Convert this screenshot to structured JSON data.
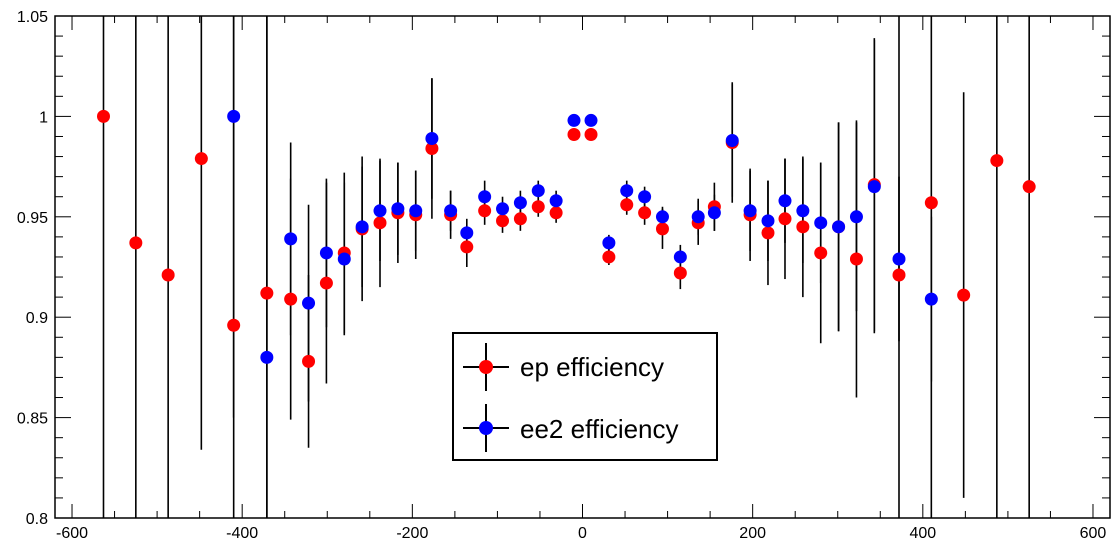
{
  "chart_data": {
    "type": "scatter",
    "title": "",
    "xlabel": "",
    "ylabel": "",
    "xlim": [
      -620,
      620
    ],
    "ylim": [
      0.8,
      1.05
    ],
    "grid": false,
    "legend_position": "center",
    "x_ticks": [
      -600,
      -400,
      -200,
      0,
      200,
      400,
      600
    ],
    "y_ticks": [
      0.8,
      0.85,
      0.9,
      0.95,
      1,
      1.05
    ],
    "x_tick_labels": [
      "-600",
      "-400",
      "-200",
      "0",
      "200",
      "400",
      "600"
    ],
    "y_tick_labels": [
      "0.8",
      "0.85",
      "0.9",
      "0.95",
      "1",
      "1.05"
    ],
    "series": [
      {
        "name": "ep efficiency",
        "color": "#ff0000",
        "points": [
          {
            "x": -563,
            "y": 1.0,
            "err": 0.3
          },
          {
            "x": -525,
            "y": 0.937,
            "err": 0.3
          },
          {
            "x": -487,
            "y": 0.921,
            "err": 0.3
          },
          {
            "x": -448,
            "y": 0.979,
            "err": 0.145
          },
          {
            "x": -410,
            "y": 0.896,
            "err": 0.3
          },
          {
            "x": -371,
            "y": 0.912,
            "err": 0.3
          },
          {
            "x": -343,
            "y": 0.909,
            "err": 0.06
          },
          {
            "x": -322,
            "y": 0.878,
            "err": 0.043
          },
          {
            "x": -301,
            "y": 0.917,
            "err": 0.05
          },
          {
            "x": -280,
            "y": 0.932,
            "err": 0.04
          },
          {
            "x": -259,
            "y": 0.944,
            "err": 0.036
          },
          {
            "x": -238,
            "y": 0.947,
            "err": 0.032
          },
          {
            "x": -217,
            "y": 0.952,
            "err": 0.025
          },
          {
            "x": -196,
            "y": 0.951,
            "err": 0.022
          },
          {
            "x": -177,
            "y": 0.984,
            "err": 0.035
          },
          {
            "x": -155,
            "y": 0.951,
            "err": 0.012
          },
          {
            "x": -136,
            "y": 0.935,
            "err": 0.01
          },
          {
            "x": -115,
            "y": 0.953,
            "err": 0.007
          },
          {
            "x": -94,
            "y": 0.948,
            "err": 0.006
          },
          {
            "x": -73,
            "y": 0.949,
            "err": 0.006
          },
          {
            "x": -52,
            "y": 0.955,
            "err": 0.005
          },
          {
            "x": -31,
            "y": 0.952,
            "err": 0.005
          },
          {
            "x": -10,
            "y": 0.991,
            "err": 0.003
          },
          {
            "x": 10,
            "y": 0.991,
            "err": 0.003
          },
          {
            "x": 31,
            "y": 0.93,
            "err": 0.004
          },
          {
            "x": 52,
            "y": 0.956,
            "err": 0.005
          },
          {
            "x": 73,
            "y": 0.952,
            "err": 0.006
          },
          {
            "x": 94,
            "y": 0.944,
            "err": 0.01
          },
          {
            "x": 115,
            "y": 0.922,
            "err": 0.008
          },
          {
            "x": 136,
            "y": 0.947,
            "err": 0.011
          },
          {
            "x": 155,
            "y": 0.955,
            "err": 0.012
          },
          {
            "x": 176,
            "y": 0.987,
            "err": 0.03
          },
          {
            "x": 197,
            "y": 0.951,
            "err": 0.023
          },
          {
            "x": 218,
            "y": 0.942,
            "err": 0.026
          },
          {
            "x": 238,
            "y": 0.949,
            "err": 0.03
          },
          {
            "x": 259,
            "y": 0.945,
            "err": 0.035
          },
          {
            "x": 280,
            "y": 0.932,
            "err": 0.045
          },
          {
            "x": 301,
            "y": 0.945,
            "err": 0.052
          },
          {
            "x": 322,
            "y": 0.929,
            "err": 0.069
          },
          {
            "x": 343,
            "y": 0.966,
            "err": 0.073
          },
          {
            "x": 372,
            "y": 0.921,
            "err": 0.3
          },
          {
            "x": 410,
            "y": 0.957,
            "err": 0.3
          },
          {
            "x": 448,
            "y": 0.911,
            "err": 0.101
          },
          {
            "x": 487,
            "y": 0.978,
            "err": 0.3
          },
          {
            "x": 525,
            "y": 0.965,
            "err": 0.3
          }
        ]
      },
      {
        "name": "ee2 efficiency",
        "color": "#0000ff",
        "points": [
          {
            "x": -410,
            "y": 1.0,
            "err": 0.15
          },
          {
            "x": -371,
            "y": 0.88,
            "err": 0.3
          },
          {
            "x": -343,
            "y": 0.939,
            "err": 0.048
          },
          {
            "x": -322,
            "y": 0.907,
            "err": 0.049
          },
          {
            "x": -301,
            "y": 0.932,
            "err": 0.037
          },
          {
            "x": -280,
            "y": 0.929,
            "err": 0.038
          },
          {
            "x": -259,
            "y": 0.945,
            "err": 0.03
          },
          {
            "x": -238,
            "y": 0.953,
            "err": 0.025
          },
          {
            "x": -217,
            "y": 0.954,
            "err": 0.023
          },
          {
            "x": -196,
            "y": 0.953,
            "err": 0.02
          },
          {
            "x": -177,
            "y": 0.989,
            "err": 0.03
          },
          {
            "x": -155,
            "y": 0.953,
            "err": 0.01
          },
          {
            "x": -136,
            "y": 0.942,
            "err": 0.007
          },
          {
            "x": -115,
            "y": 0.96,
            "err": 0.008
          },
          {
            "x": -94,
            "y": 0.954,
            "err": 0.006
          },
          {
            "x": -73,
            "y": 0.957,
            "err": 0.006
          },
          {
            "x": -52,
            "y": 0.963,
            "err": 0.005
          },
          {
            "x": -31,
            "y": 0.958,
            "err": 0.005
          },
          {
            "x": -10,
            "y": 0.998,
            "err": 0.003
          },
          {
            "x": 10,
            "y": 0.998,
            "err": 0.003
          },
          {
            "x": 31,
            "y": 0.937,
            "err": 0.004
          },
          {
            "x": 52,
            "y": 0.963,
            "err": 0.005
          },
          {
            "x": 73,
            "y": 0.96,
            "err": 0.005
          },
          {
            "x": 94,
            "y": 0.95,
            "err": 0.005
          },
          {
            "x": 115,
            "y": 0.93,
            "err": 0.006
          },
          {
            "x": 136,
            "y": 0.95,
            "err": 0.009
          },
          {
            "x": 155,
            "y": 0.952,
            "err": 0.009
          },
          {
            "x": 176,
            "y": 0.988,
            "err": 0.028
          },
          {
            "x": 197,
            "y": 0.953,
            "err": 0.02
          },
          {
            "x": 218,
            "y": 0.948,
            "err": 0.02
          },
          {
            "x": 238,
            "y": 0.958,
            "err": 0.021
          },
          {
            "x": 259,
            "y": 0.953,
            "err": 0.026
          },
          {
            "x": 280,
            "y": 0.947,
            "err": 0.03
          },
          {
            "x": 301,
            "y": 0.945,
            "err": 0.052
          },
          {
            "x": 322,
            "y": 0.95,
            "err": 0.047
          },
          {
            "x": 343,
            "y": 0.965,
            "err": 0.073
          },
          {
            "x": 372,
            "y": 0.929,
            "err": 0.041
          },
          {
            "x": 410,
            "y": 0.909,
            "err": 0.041
          }
        ]
      }
    ]
  }
}
